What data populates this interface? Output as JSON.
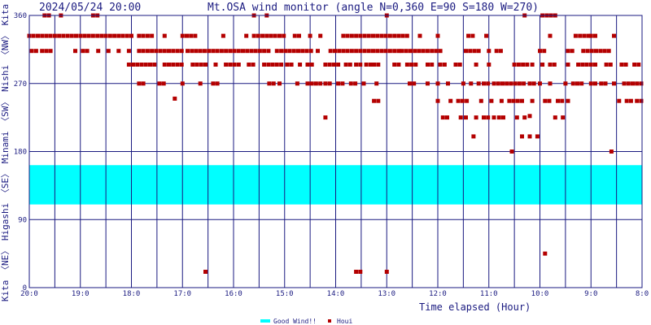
{
  "header": {
    "timestamp": "2024/05/24 20:00",
    "title": "Mt.OSA wind monitor (angle N=0,360 E=90 S=180 W=270)"
  },
  "side_label": "Kita 〈NE〉 Higashi 〈SE〉 Minami 〈SW〉 Nishi 〈NW〉 Kita",
  "colors": {
    "good_band": "#00ffff",
    "houi": "#b40000",
    "axis": "#1a1a80",
    "grid": "#1a1a80"
  },
  "chart_data": {
    "type": "scatter",
    "title": "Mt.OSA wind monitor (angle N=0,360 E=90 S=180 W=270)",
    "xlabel": "Time elapsed (Hour)",
    "ylabel": "Kita 〈NE〉 Higashi 〈SE〉 Minami 〈SW〉 Nishi 〈NW〉 Kita",
    "x_unit": "hours elapsed from 20:00 (0 = 20:00, 12 = 8:00)",
    "xlim": [
      0,
      12
    ],
    "ylim": [
      0,
      360
    ],
    "x_ticks": [
      {
        "value": 0,
        "label": "20:0"
      },
      {
        "value": 1,
        "label": "19:0"
      },
      {
        "value": 2,
        "label": "18:0"
      },
      {
        "value": 3,
        "label": "17:0"
      },
      {
        "value": 4,
        "label": "16:0"
      },
      {
        "value": 5,
        "label": "15:0"
      },
      {
        "value": 6,
        "label": "14:0"
      },
      {
        "value": 7,
        "label": "13:0"
      },
      {
        "value": 8,
        "label": "12:0"
      },
      {
        "value": 9,
        "label": "11:0"
      },
      {
        "value": 10,
        "label": "10:0"
      },
      {
        "value": 11,
        "label": "9:0"
      },
      {
        "value": 12,
        "label": "8:0"
      }
    ],
    "y_ticks": [
      {
        "value": 0,
        "label": "0"
      },
      {
        "value": 90,
        "label": "90"
      },
      {
        "value": 180,
        "label": "180"
      },
      {
        "value": 270,
        "label": "270"
      },
      {
        "value": 360,
        "label": "360"
      }
    ],
    "grid": true,
    "legend_position": "bottom-center",
    "band": {
      "name": "Good Wind!!",
      "y_from": 110,
      "y_to": 162,
      "color": "#00ffff"
    },
    "series": [
      {
        "name": "Houi",
        "color": "#b40000",
        "marker": "square",
        "rows": [
          {
            "y": 360,
            "segments": [
              [
                0.3,
                0.45
              ],
              [
                0.62,
                0.7
              ],
              [
                1.25,
                1.4
              ],
              [
                4.4,
                4.45
              ],
              [
                4.65,
                4.7
              ],
              [
                7.0,
                7.05
              ],
              [
                9.7,
                9.75
              ],
              [
                10.05,
                10.3
              ]
            ]
          },
          {
            "y": 333,
            "segments": [
              [
                0.0,
                2.05
              ],
              [
                2.15,
                2.4
              ],
              [
                2.65,
                2.7
              ],
              [
                3.0,
                3.25
              ],
              [
                3.8,
                3.85
              ],
              [
                4.25,
                4.3
              ],
              [
                4.4,
                5.05
              ],
              [
                5.2,
                5.3
              ],
              [
                5.5,
                5.55
              ],
              [
                5.7,
                5.75
              ],
              [
                6.15,
                7.4
              ],
              [
                7.65,
                7.7
              ],
              [
                8.0,
                8.05
              ],
              [
                8.6,
                8.75
              ],
              [
                8.95,
                9.0
              ],
              [
                10.2,
                10.25
              ],
              [
                10.7,
                10.95
              ],
              [
                11.0,
                11.15
              ],
              [
                11.45,
                11.5
              ]
            ]
          },
          {
            "y": 313,
            "segments": [
              [
                0.05,
                0.15
              ],
              [
                0.25,
                0.45
              ],
              [
                0.9,
                0.95
              ],
              [
                1.05,
                1.2
              ],
              [
                1.35,
                1.4
              ],
              [
                1.55,
                1.6
              ],
              [
                1.75,
                1.8
              ],
              [
                1.95,
                2.0
              ],
              [
                2.15,
                3.05
              ],
              [
                3.1,
                4.7
              ],
              [
                4.85,
                5.55
              ],
              [
                5.65,
                5.7
              ],
              [
                5.9,
                6.1
              ],
              [
                6.15,
                7.25
              ],
              [
                7.3,
                8.05
              ],
              [
                8.55,
                8.8
              ],
              [
                9.0,
                9.05
              ],
              [
                9.15,
                9.25
              ],
              [
                10.0,
                10.1
              ],
              [
                10.55,
                10.65
              ],
              [
                10.85,
                11.4
              ]
            ]
          },
          {
            "y": 295,
            "segments": [
              [
                1.95,
                2.5
              ],
              [
                2.65,
                3.05
              ],
              [
                3.2,
                3.5
              ],
              [
                3.65,
                3.7
              ],
              [
                3.85,
                4.15
              ],
              [
                4.3,
                4.4
              ],
              [
                4.6,
                5.0
              ],
              [
                5.05,
                5.2
              ],
              [
                5.3,
                5.35
              ],
              [
                5.45,
                5.55
              ],
              [
                5.8,
                6.1
              ],
              [
                6.2,
                6.35
              ],
              [
                6.4,
                6.5
              ],
              [
                6.6,
                6.7
              ],
              [
                6.75,
                6.85
              ],
              [
                7.15,
                7.25
              ],
              [
                7.4,
                7.6
              ],
              [
                7.8,
                7.9
              ],
              [
                8.05,
                8.2
              ],
              [
                8.35,
                8.5
              ],
              [
                8.75,
                8.8
              ],
              [
                9.0,
                9.05
              ],
              [
                9.5,
                9.75
              ],
              [
                9.85,
                9.9
              ],
              [
                10.05,
                10.1
              ],
              [
                10.2,
                10.35
              ],
              [
                10.55,
                10.6
              ],
              [
                10.75,
                11.15
              ],
              [
                11.3,
                11.45
              ],
              [
                11.6,
                11.7
              ],
              [
                11.85,
                11.95
              ]
            ]
          },
          {
            "y": 270,
            "segments": [
              [
                2.15,
                2.25
              ],
              [
                2.55,
                2.65
              ],
              [
                3.0,
                3.05
              ],
              [
                3.35,
                3.4
              ],
              [
                3.6,
                3.7
              ],
              [
                4.7,
                4.8
              ],
              [
                4.9,
                4.95
              ],
              [
                5.25,
                5.3
              ],
              [
                5.45,
                5.7
              ],
              [
                5.8,
                5.9
              ],
              [
                6.05,
                6.2
              ],
              [
                6.3,
                6.45
              ],
              [
                6.55,
                6.6
              ],
              [
                6.8,
                6.85
              ],
              [
                7.45,
                7.55
              ],
              [
                7.8,
                7.85
              ],
              [
                8.0,
                8.05
              ],
              [
                8.2,
                8.25
              ],
              [
                8.5,
                8.55
              ],
              [
                8.65,
                8.7
              ],
              [
                8.8,
                8.85
              ],
              [
                8.9,
                9.0
              ],
              [
                9.1,
                9.3
              ],
              [
                9.35,
                9.7
              ],
              [
                9.8,
                9.9
              ],
              [
                10.0,
                10.05
              ],
              [
                10.2,
                10.25
              ],
              [
                10.5,
                10.55
              ],
              [
                10.65,
                10.85
              ],
              [
                11.0,
                11.1
              ],
              [
                11.2,
                11.35
              ],
              [
                11.45,
                11.5
              ],
              [
                11.65,
                12.05
              ]
            ]
          },
          {
            "y": 250,
            "segments": [
              [
                2.85,
                2.9
              ]
            ]
          },
          {
            "y": 247,
            "segments": [
              [
                6.75,
                6.85
              ],
              [
                8.0,
                8.05
              ],
              [
                8.25,
                8.3
              ],
              [
                8.4,
                8.6
              ],
              [
                8.85,
                8.9
              ],
              [
                9.05,
                9.1
              ],
              [
                9.25,
                9.3
              ],
              [
                9.4,
                9.7
              ],
              [
                9.85,
                9.9
              ],
              [
                10.1,
                10.25
              ],
              [
                10.35,
                10.45
              ],
              [
                10.55,
                10.6
              ],
              [
                11.55,
                11.6
              ],
              [
                11.7,
                11.8
              ],
              [
                11.9,
                12.0
              ]
            ]
          },
          {
            "y": 227,
            "segments": [
              [
                9.8,
                9.85
              ]
            ]
          },
          {
            "y": 225,
            "segments": [
              [
                5.8,
                5.85
              ],
              [
                8.1,
                8.25
              ],
              [
                8.45,
                8.5
              ],
              [
                8.55,
                8.6
              ],
              [
                8.75,
                8.8
              ],
              [
                8.9,
                9.0
              ],
              [
                9.1,
                9.15
              ],
              [
                9.2,
                9.3
              ],
              [
                9.55,
                9.6
              ],
              [
                9.7,
                9.75
              ],
              [
                10.3,
                10.35
              ],
              [
                10.45,
                10.5
              ]
            ]
          },
          {
            "y": 200,
            "segments": [
              [
                8.7,
                8.75
              ],
              [
                9.65,
                9.7
              ],
              [
                9.8,
                9.85
              ],
              [
                9.95,
                10.0
              ]
            ]
          },
          {
            "y": 180,
            "segments": [
              [
                9.45,
                9.5
              ],
              [
                11.4,
                11.45
              ]
            ]
          },
          {
            "y": 45,
            "segments": [
              [
                10.1,
                10.15
              ]
            ]
          },
          {
            "y": 21,
            "segments": [
              [
                3.45,
                3.5
              ],
              [
                6.4,
                6.55
              ],
              [
                7.0,
                7.05
              ]
            ]
          }
        ]
      }
    ]
  },
  "legend": {
    "good_label": "Good Wind!!",
    "houi_label": "Houi"
  }
}
